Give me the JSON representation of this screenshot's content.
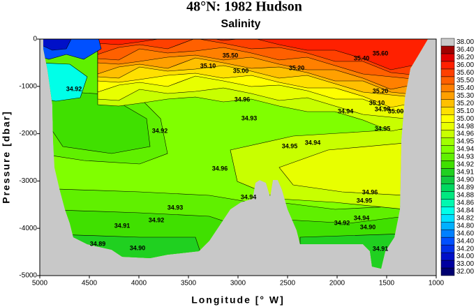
{
  "chart_data": {
    "type": "contour",
    "title": "48°N: 1982 Hudson",
    "subtitle": "Salinity",
    "x_label": "Longitude [° W]",
    "y_label": "Pressure [dbar]",
    "xlim": [
      5000,
      1000
    ],
    "xticks": [
      5000,
      4500,
      4000,
      3500,
      3000,
      2500,
      2000,
      1500,
      1000
    ],
    "ylim": [
      -5000,
      0
    ],
    "yticks": [
      0,
      -1000,
      -2000,
      -3000,
      -4000,
      -5000
    ],
    "colorbar": {
      "levels": [
        {
          "value": 32,
          "label": "32.00"
        },
        {
          "value": 33,
          "label": "33.00"
        },
        {
          "value": 34,
          "label": "34.00"
        },
        {
          "value": 34.2,
          "label": "34.20"
        },
        {
          "value": 34.4,
          "label": "34.40"
        },
        {
          "value": 34.6,
          "label": "34.60"
        },
        {
          "value": 34.8,
          "label": "34.80"
        },
        {
          "value": 34.82,
          "label": "34.82"
        },
        {
          "value": 34.84,
          "label": "34.84"
        },
        {
          "value": 34.86,
          "label": "34.86"
        },
        {
          "value": 34.88,
          "label": "34.88"
        },
        {
          "value": 34.89,
          "label": "34.89"
        },
        {
          "value": 34.9,
          "label": "34.90"
        },
        {
          "value": 34.91,
          "label": "34.91"
        },
        {
          "value": 34.92,
          "label": "34.92"
        },
        {
          "value": 34.93,
          "label": "34.93"
        },
        {
          "value": 34.94,
          "label": "34.94"
        },
        {
          "value": 34.95,
          "label": "34.95"
        },
        {
          "value": 34.96,
          "label": "34.96"
        },
        {
          "value": 34.98,
          "label": "34.98"
        },
        {
          "value": 35,
          "label": "35.00"
        },
        {
          "value": 35.1,
          "label": "35.10"
        },
        {
          "value": 35.2,
          "label": "35.20"
        },
        {
          "value": 35.3,
          "label": "35.30"
        },
        {
          "value": 35.4,
          "label": "35.40"
        },
        {
          "value": 35.5,
          "label": "35.50"
        },
        {
          "value": 35.6,
          "label": "35.60"
        },
        {
          "value": 36,
          "label": "36.00"
        },
        {
          "value": 36.2,
          "label": "36.20"
        },
        {
          "value": 36.4,
          "label": "36.40"
        },
        {
          "value": 38,
          "label": "38.00"
        }
      ],
      "colors": [
        "#000070",
        "#0000a0",
        "#0010c8",
        "#0030e8",
        "#0050ff",
        "#0080ff",
        "#00b0ff",
        "#00e0ff",
        "#00ffe8",
        "#00f8b0",
        "#00e880",
        "#00d860",
        "#10c840",
        "#20d020",
        "#40e000",
        "#60f000",
        "#80ff00",
        "#a0ff00",
        "#c8ff00",
        "#e8ff00",
        "#ffff00",
        "#ffe000",
        "#ffc000",
        "#ffa000",
        "#ff8000",
        "#ff6000",
        "#ff4000",
        "#ff2000",
        "#e00000",
        "#a00000",
        "#c8c8c8"
      ]
    },
    "contour_labels": [
      "35.60",
      "35.40",
      "35.20",
      "35.50",
      "35.10",
      "35.00",
      "34.96",
      "34.93",
      "34.92",
      "34.92",
      "35.20",
      "35.10",
      "34.98",
      "35.00",
      "34.94",
      "34.95",
      "34.95",
      "34.94",
      "34.96",
      "34.96",
      "34.95",
      "34.94",
      "34.90",
      "34.94",
      "34.93",
      "34.92",
      "34.91",
      "34.92",
      "34.90",
      "34.89",
      "34.91"
    ]
  }
}
